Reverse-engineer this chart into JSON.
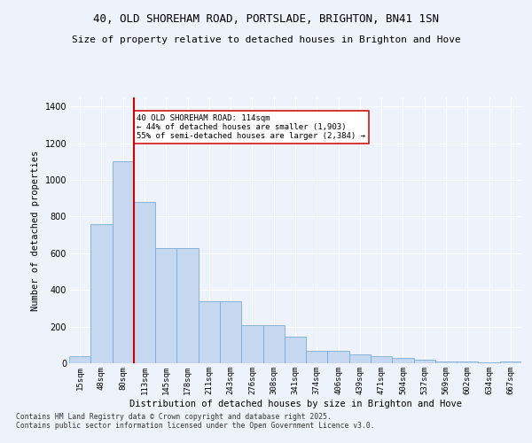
{
  "title_line1": "40, OLD SHOREHAM ROAD, PORTSLADE, BRIGHTON, BN41 1SN",
  "title_line2": "Size of property relative to detached houses in Brighton and Hove",
  "xlabel": "Distribution of detached houses by size in Brighton and Hove",
  "ylabel": "Number of detached properties",
  "categories": [
    "15sqm",
    "48sqm",
    "80sqm",
    "113sqm",
    "145sqm",
    "178sqm",
    "211sqm",
    "243sqm",
    "276sqm",
    "308sqm",
    "341sqm",
    "374sqm",
    "406sqm",
    "439sqm",
    "471sqm",
    "504sqm",
    "537sqm",
    "569sqm",
    "602sqm",
    "634sqm",
    "667sqm"
  ],
  "values": [
    40,
    760,
    1100,
    880,
    630,
    630,
    340,
    340,
    210,
    210,
    145,
    70,
    70,
    50,
    40,
    28,
    18,
    10,
    8,
    5,
    8
  ],
  "bar_color": "#c5d8f0",
  "bar_edge_color": "#7aadd4",
  "vline_x_index": 3,
  "vline_color": "#cc0000",
  "annotation_text": "40 OLD SHOREHAM ROAD: 114sqm\n← 44% of detached houses are smaller (1,903)\n55% of semi-detached houses are larger (2,384) →",
  "annotation_box_color": "#cc0000",
  "annotation_fill": "white",
  "background_color": "#eef2fa",
  "grid_color": "#ffffff",
  "ylim": [
    0,
    1450
  ],
  "yticks": [
    0,
    200,
    400,
    600,
    800,
    1000,
    1200,
    1400
  ],
  "footer_line1": "Contains HM Land Registry data © Crown copyright and database right 2025.",
  "footer_line2": "Contains public sector information licensed under the Open Government Licence v3.0."
}
